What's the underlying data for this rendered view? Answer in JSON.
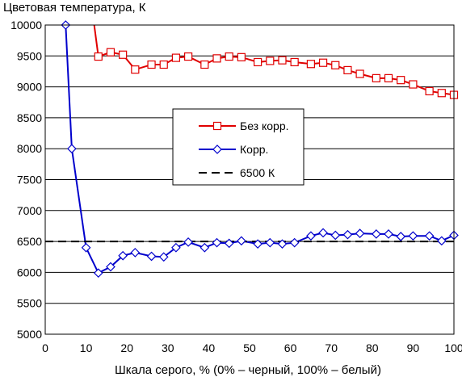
{
  "chart_data": {
    "type": "line",
    "title": "",
    "ylabel": "Цветовая температура, К",
    "xlabel": "Шкала серого, % (0% – черный, 100% – белый)",
    "xlim": [
      0,
      100
    ],
    "ylim": [
      5000,
      10000
    ],
    "xticks": [
      0,
      10,
      20,
      30,
      40,
      50,
      60,
      70,
      80,
      90,
      100
    ],
    "yticks": [
      5000,
      5500,
      6000,
      6500,
      7000,
      7500,
      8000,
      8500,
      9000,
      9500,
      10000
    ],
    "grid": "horizontal",
    "legend_position": "center-right",
    "series": [
      {
        "name": "Без корр.",
        "color": "#e00000",
        "marker": "square",
        "x": [
          9,
          13,
          16,
          19,
          22,
          26,
          29,
          32,
          35,
          39,
          42,
          45,
          48,
          52,
          55,
          58,
          61,
          65,
          68,
          71,
          74,
          77,
          81,
          84,
          87,
          90,
          94,
          97,
          100
        ],
        "y": [
          11500,
          9490,
          9560,
          9520,
          9280,
          9360,
          9360,
          9470,
          9490,
          9360,
          9460,
          9490,
          9480,
          9400,
          9420,
          9430,
          9400,
          9370,
          9390,
          9350,
          9270,
          9210,
          9140,
          9140,
          9110,
          9040,
          8930,
          8900,
          8870
        ]
      },
      {
        "name": "Корр.",
        "color": "#0000cc",
        "marker": "diamond",
        "x": [
          5,
          6.5,
          10,
          13,
          16,
          19,
          22,
          26,
          29,
          32,
          35,
          39,
          42,
          45,
          48,
          52,
          55,
          58,
          61,
          65,
          68,
          71,
          74,
          77,
          81,
          84,
          87,
          90,
          94,
          97,
          100
        ],
        "y": [
          10000,
          8000,
          6400,
          5990,
          6090,
          6270,
          6320,
          6260,
          6250,
          6400,
          6490,
          6400,
          6480,
          6470,
          6510,
          6460,
          6480,
          6460,
          6480,
          6590,
          6640,
          6600,
          6610,
          6630,
          6620,
          6620,
          6580,
          6590,
          6590,
          6510,
          6600
        ]
      },
      {
        "name": "6500 К",
        "color": "#000000",
        "marker": "none",
        "dash": "dashed",
        "x": [
          0,
          100
        ],
        "y": [
          6500,
          6500
        ]
      }
    ]
  }
}
